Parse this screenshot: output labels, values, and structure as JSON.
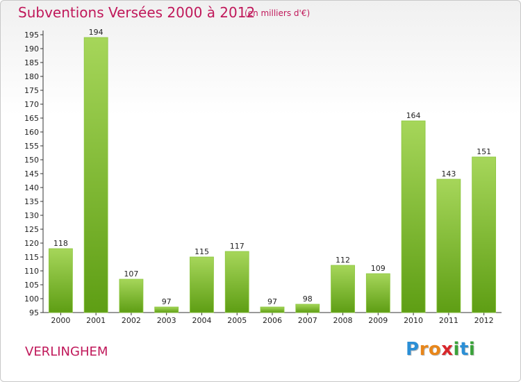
{
  "header": {
    "title": "Subventions Versées 2000 à 2012",
    "subtitle": "(en milliers d'€)"
  },
  "footer": {
    "commune": "VERLINGHEM",
    "logo_letters": [
      "P",
      "r",
      "o",
      "x",
      "i",
      "t",
      "i"
    ],
    "logo_colors": [
      "#2b8fd6",
      "#e8861a",
      "#e8861a",
      "#d8262b",
      "#3aa23a",
      "#2b8fd6",
      "#3aa23a"
    ]
  },
  "chart_data": {
    "type": "bar",
    "title": "Subventions Versées 2000 à 2012",
    "subtitle": "(en milliers d'€)",
    "categories": [
      "2000",
      "2001",
      "2002",
      "2003",
      "2004",
      "2005",
      "2006",
      "2007",
      "2008",
      "2009",
      "2010",
      "2011",
      "2012"
    ],
    "values": [
      118,
      194,
      107,
      97,
      115,
      117,
      97,
      98,
      112,
      109,
      164,
      143,
      151
    ],
    "ylim": [
      95,
      195
    ],
    "ytick_step": 5,
    "grid": false,
    "bar_color_light": "#a6d65a",
    "bar_color_dark": "#5e9e14"
  }
}
